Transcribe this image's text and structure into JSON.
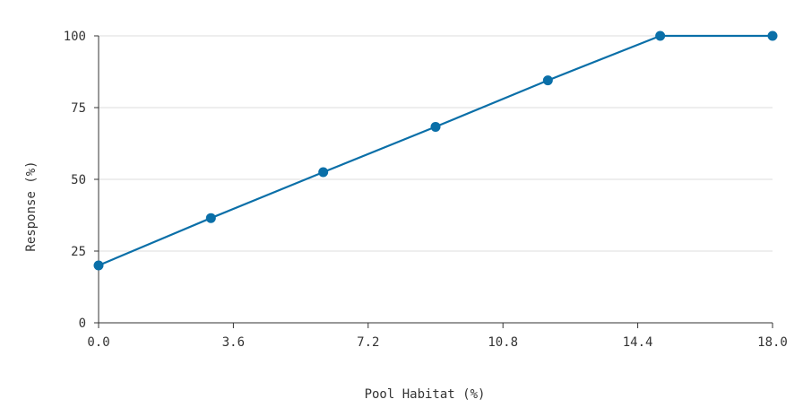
{
  "chart_data": {
    "type": "line",
    "xlabel": "Pool Habitat (%)",
    "ylabel": "Response (%)",
    "x_ticks": [
      "0.0",
      "3.6",
      "7.2",
      "10.8",
      "14.4",
      "18.0"
    ],
    "y_ticks": [
      "0",
      "25",
      "50",
      "75",
      "100"
    ],
    "xlim": [
      0,
      18
    ],
    "ylim": [
      0,
      100
    ],
    "grid": "horizontal",
    "series": [
      {
        "color": "#0a6fa8",
        "x": [
          0,
          3,
          6,
          9,
          12,
          15,
          18
        ],
        "y": [
          20,
          36.5,
          52.5,
          68.3,
          84.5,
          100,
          100
        ]
      }
    ]
  }
}
